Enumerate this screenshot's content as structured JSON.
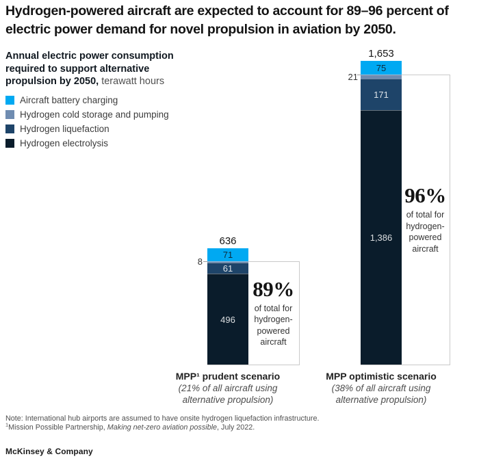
{
  "title": {
    "lines": [
      "Hydrogen-powered aircraft are expected to account for 89–96 percent of",
      "electric power demand for novel propulsion in aviation by 2050."
    ]
  },
  "subtitle": {
    "lines": [
      "Annual electric power consumption",
      "required to support alternative",
      "propulsion by 2050,"
    ],
    "unit": "terawatt hours"
  },
  "chart_data": {
    "type": "bar",
    "stacked": true,
    "unit": "terawatt hours",
    "title": "Annual electric power consumption required to support alternative propulsion by 2050",
    "categories": [
      "MPP¹ prudent scenario",
      "MPP optimistic scenario"
    ],
    "category_notes": [
      [
        "(21% of all aircraft using",
        "alternative propulsion)"
      ],
      [
        "(38% of all aircraft using",
        "alternative propulsion)"
      ]
    ],
    "series": [
      {
        "name": "Aircraft battery charging",
        "color": "#00a9f2",
        "values": [
          71,
          75
        ]
      },
      {
        "name": "Hydrogen cold storage and pumping",
        "color": "#6f8cb1",
        "values": [
          8,
          21
        ]
      },
      {
        "name": "Hydrogen liquefaction",
        "color": "#1e4469",
        "values": [
          61,
          171
        ]
      },
      {
        "name": "Hydrogen electrolysis",
        "color": "#0a1c2b",
        "values": [
          496,
          1386
        ]
      }
    ],
    "totals": [
      636,
      1653
    ],
    "total_labels": [
      "636",
      "1,653"
    ],
    "segment_labels": [
      [
        "71",
        null,
        "61",
        "496"
      ],
      [
        "75",
        null,
        "171",
        "1,386"
      ]
    ],
    "outside_labels": [
      "8",
      "21"
    ],
    "annotations": [
      {
        "pct": "89%",
        "caption": "of total for hydrogen-powered aircraft"
      },
      {
        "pct": "96%",
        "caption": "of total for hydrogen-powered aircraft"
      }
    ],
    "ylim": [
      0,
      1653
    ],
    "gridlines": false,
    "legend_position": "top-left"
  },
  "footnotes": {
    "note": "Note: International hub airports are assumed to have onsite hydrogen liquefaction infrastructure.",
    "source_sup": "1",
    "source_pre": "Mission Possible Partnership, ",
    "source_italic": "Making net-zero aviation possible",
    "source_post": ", July 2022."
  },
  "brand": "McKinsey & Company",
  "colors": {
    "battery_charging": "#00a9f2",
    "cold_storage": "#6f8cb1",
    "liquefaction": "#1e4469",
    "electrolysis": "#0a1c2b",
    "annotation_border": "#c9c9c9"
  }
}
